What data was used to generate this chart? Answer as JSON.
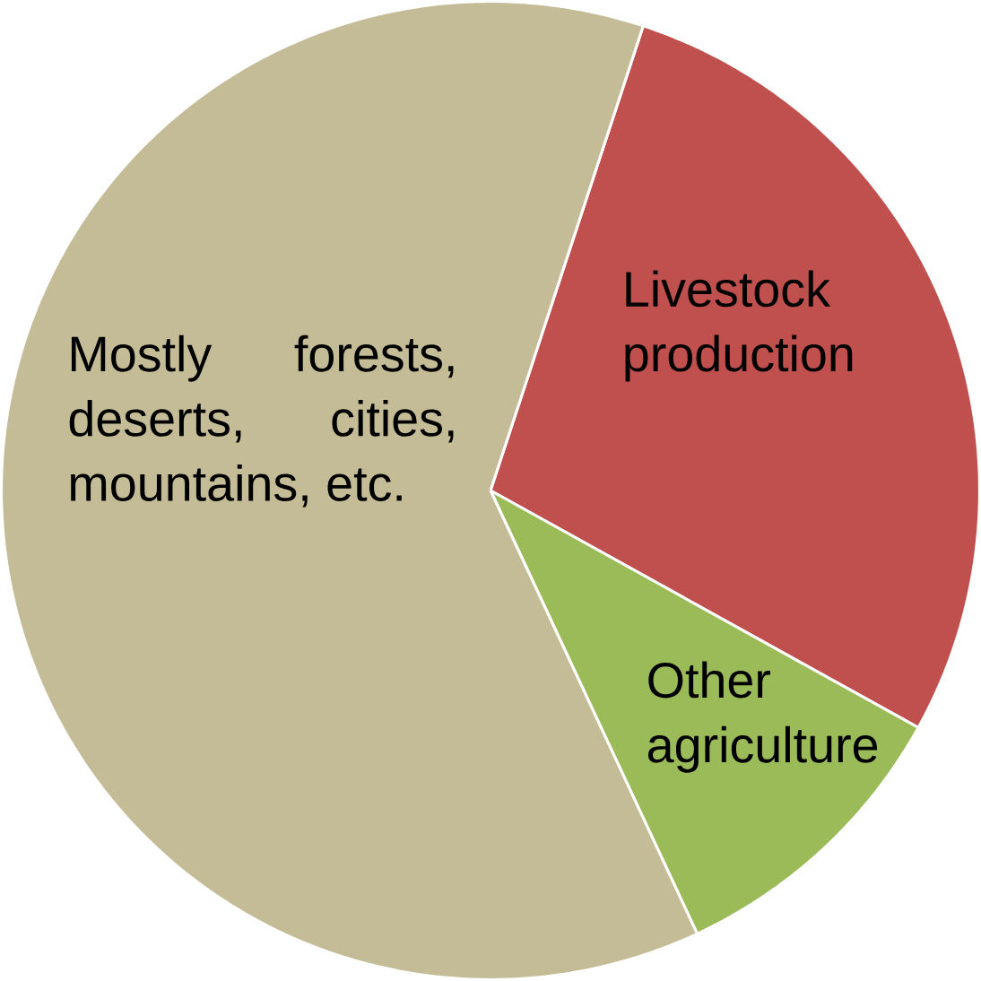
{
  "chart_data": {
    "type": "pie",
    "categories": [
      "Livestock production",
      "Other agriculture",
      "Mostly forests, deserts, cities, mountains, etc."
    ],
    "values": [
      28,
      10,
      62
    ],
    "colors": [
      "#c0504d",
      "#9bbb59",
      "#c4bc96"
    ]
  }
}
